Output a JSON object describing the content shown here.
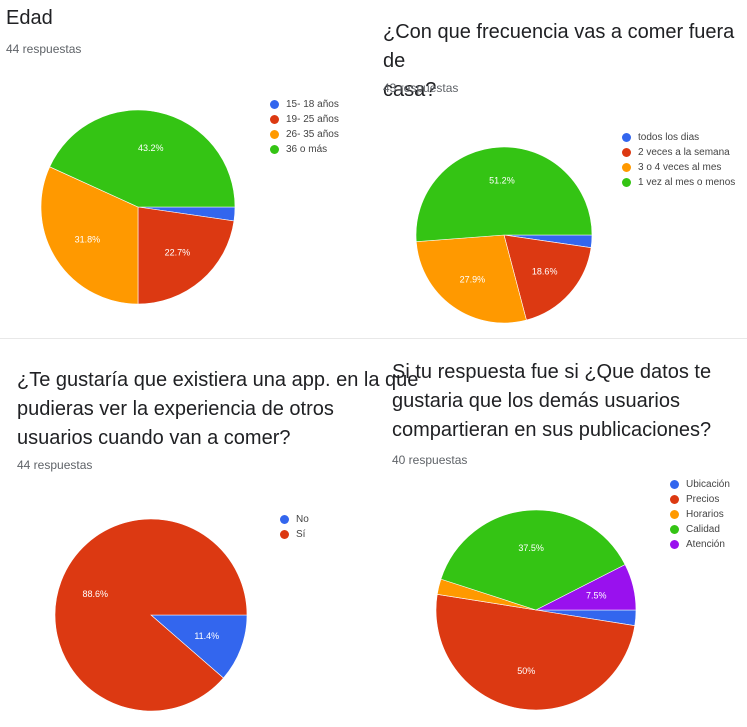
{
  "colors": {
    "blue": "#3366ee",
    "red": "#dc3912",
    "orange": "#ff9900",
    "green": "#34c414",
    "purple": "#9911ee"
  },
  "chart_data": [
    {
      "type": "pie",
      "title": "Edad",
      "responses": "44 respuestas",
      "slices": [
        {
          "label": "15- 18 años",
          "value": 2.3,
          "color": "#3366ee",
          "text": ""
        },
        {
          "label": "19- 25 años",
          "value": 22.7,
          "color": "#dc3912",
          "text": "22.7%"
        },
        {
          "label": "26- 35 años",
          "value": 31.8,
          "color": "#ff9900",
          "text": "31.8%"
        },
        {
          "label": "36 o más",
          "value": 43.2,
          "color": "#34c414",
          "text": "43.2%"
        }
      ],
      "legend": "right"
    },
    {
      "type": "pie",
      "title": "¿Con que frecuencia vas a comer fuera de\ncasa?",
      "responses": "43 respuestas",
      "slices": [
        {
          "label": "todos los dias",
          "value": 2.3,
          "color": "#3366ee",
          "text": ""
        },
        {
          "label": "2 veces a la semana",
          "value": 18.6,
          "color": "#dc3912",
          "text": "18.6%"
        },
        {
          "label": "3 o 4 veces al mes",
          "value": 27.9,
          "color": "#ff9900",
          "text": "27.9%"
        },
        {
          "label": "1 vez al mes o menos",
          "value": 51.2,
          "color": "#34c414",
          "text": "51.2%"
        }
      ],
      "legend": "right"
    },
    {
      "type": "pie",
      "title": "¿Te gustaría que existiera una app. en la que\npudieras ver la experiencia de otros\nusuarios cuando van a comer?",
      "responses": "44 respuestas",
      "slices": [
        {
          "label": "No",
          "value": 11.4,
          "color": "#3366ee",
          "text": "11.4%"
        },
        {
          "label": "Sí",
          "value": 88.6,
          "color": "#dc3912",
          "text": "88.6%"
        }
      ],
      "legend": "right"
    },
    {
      "type": "pie",
      "title": "Si tu respuesta fue si ¿Que datos te\ngustaria que los demás usuarios\ncompartieran en sus publicaciones?",
      "responses": "40 respuestas",
      "slices": [
        {
          "label": "Ubicación",
          "value": 2.5,
          "color": "#3366ee",
          "text": ""
        },
        {
          "label": "Precios",
          "value": 50,
          "color": "#dc3912",
          "text": "50%"
        },
        {
          "label": "Horarios",
          "value": 2.5,
          "color": "#ff9900",
          "text": ""
        },
        {
          "label": "Calidad",
          "value": 37.5,
          "color": "#34c414",
          "text": "37.5%"
        },
        {
          "label": "Atención",
          "value": 7.5,
          "color": "#9911ee",
          "text": "7.5%"
        }
      ],
      "legend": "right"
    }
  ]
}
